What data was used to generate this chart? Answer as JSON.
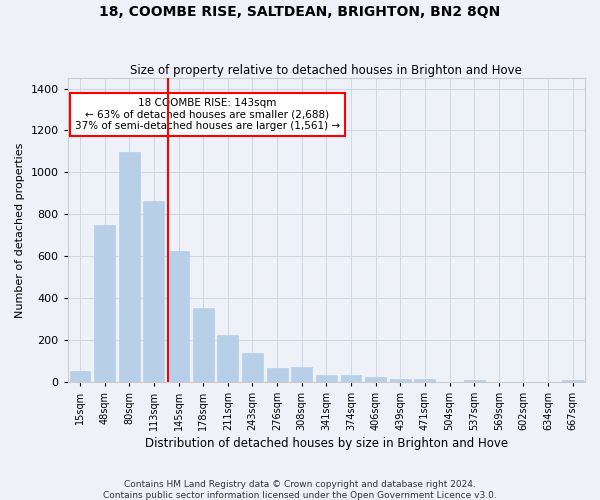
{
  "title1": "18, COOMBE RISE, SALTDEAN, BRIGHTON, BN2 8QN",
  "title2": "Size of property relative to detached houses in Brighton and Hove",
  "xlabel": "Distribution of detached houses by size in Brighton and Hove",
  "ylabel": "Number of detached properties",
  "footer1": "Contains HM Land Registry data © Crown copyright and database right 2024.",
  "footer2": "Contains public sector information licensed under the Open Government Licence v3.0.",
  "categories": [
    "15sqm",
    "48sqm",
    "80sqm",
    "113sqm",
    "145sqm",
    "178sqm",
    "211sqm",
    "243sqm",
    "276sqm",
    "308sqm",
    "341sqm",
    "374sqm",
    "406sqm",
    "439sqm",
    "471sqm",
    "504sqm",
    "537sqm",
    "569sqm",
    "602sqm",
    "634sqm",
    "667sqm"
  ],
  "values": [
    50,
    750,
    1095,
    865,
    625,
    350,
    222,
    135,
    65,
    70,
    32,
    30,
    23,
    15,
    12,
    0,
    10,
    0,
    0,
    0,
    10
  ],
  "bar_color": "#b8cfe8",
  "bar_edgecolor": "#b8cfe8",
  "vline_color": "red",
  "vline_x_index": 4,
  "annotation_title": "18 COOMBE RISE: 143sqm",
  "annotation_line1": "← 63% of detached houses are smaller (2,688)",
  "annotation_line2": "37% of semi-detached houses are larger (1,561) →",
  "annotation_box_color": "white",
  "annotation_box_edgecolor": "red",
  "ylim": [
    0,
    1450
  ],
  "yticks": [
    0,
    200,
    400,
    600,
    800,
    1000,
    1200,
    1400
  ],
  "grid_color": "#d0d8e8",
  "background_color": "#eef2f8",
  "title1_fontsize": 10,
  "title2_fontsize": 8.5,
  "xlabel_fontsize": 8.5,
  "ylabel_fontsize": 8,
  "xtick_fontsize": 7,
  "ytick_fontsize": 8,
  "footer_fontsize": 6.5
}
